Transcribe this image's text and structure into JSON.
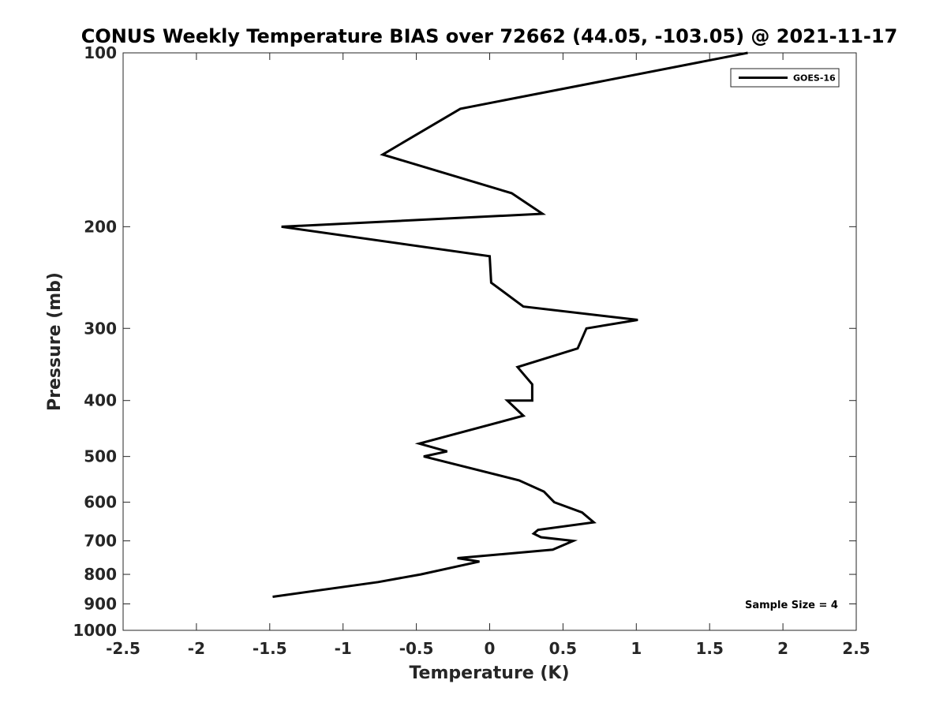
{
  "chart_data": {
    "type": "line",
    "title": "CONUS Weekly Temperature BIAS over 72662 (44.05, -103.05) @ 2021-11-17",
    "xlabel": "Temperature (K)",
    "ylabel": "Pressure (mb)",
    "xlim": [
      -2.5,
      2.5
    ],
    "ylim": [
      100,
      1000
    ],
    "y_scale": "log",
    "y_reversed": true,
    "x_ticks": [
      "-2.5",
      "-2",
      "-1.5",
      "-1",
      "-0.5",
      "0",
      "0.5",
      "1",
      "1.5",
      "2",
      "2.5"
    ],
    "y_ticks": [
      "100",
      "200",
      "300",
      "400",
      "500",
      "600",
      "700",
      "800",
      "900",
      "1000"
    ],
    "grid": false,
    "legend_position": "top-right",
    "annotation": "Sample Size = 4",
    "series": [
      {
        "name": "GOES-16",
        "color": "#000000",
        "points": [
          {
            "x": 1.76,
            "y": 100
          },
          {
            "x": -0.2,
            "y": 125
          },
          {
            "x": -0.73,
            "y": 150
          },
          {
            "x": 0.15,
            "y": 175
          },
          {
            "x": 0.36,
            "y": 190
          },
          {
            "x": -1.42,
            "y": 200
          },
          {
            "x": 0.0,
            "y": 225
          },
          {
            "x": 0.01,
            "y": 250
          },
          {
            "x": 0.23,
            "y": 275
          },
          {
            "x": 1.01,
            "y": 290
          },
          {
            "x": 0.66,
            "y": 300
          },
          {
            "x": 0.6,
            "y": 325
          },
          {
            "x": 0.19,
            "y": 350
          },
          {
            "x": 0.29,
            "y": 375
          },
          {
            "x": 0.29,
            "y": 400
          },
          {
            "x": 0.12,
            "y": 400
          },
          {
            "x": 0.23,
            "y": 425
          },
          {
            "x": -0.48,
            "y": 475
          },
          {
            "x": -0.29,
            "y": 490
          },
          {
            "x": -0.45,
            "y": 500
          },
          {
            "x": 0.2,
            "y": 550
          },
          {
            "x": 0.37,
            "y": 575
          },
          {
            "x": 0.44,
            "y": 600
          },
          {
            "x": 0.63,
            "y": 625
          },
          {
            "x": 0.71,
            "y": 650
          },
          {
            "x": 0.33,
            "y": 670
          },
          {
            "x": 0.3,
            "y": 680
          },
          {
            "x": 0.35,
            "y": 690
          },
          {
            "x": 0.57,
            "y": 700
          },
          {
            "x": 0.43,
            "y": 725
          },
          {
            "x": -0.22,
            "y": 750
          },
          {
            "x": -0.07,
            "y": 760
          },
          {
            "x": -0.47,
            "y": 800
          },
          {
            "x": -0.76,
            "y": 825
          },
          {
            "x": -1.48,
            "y": 875
          }
        ]
      }
    ]
  }
}
